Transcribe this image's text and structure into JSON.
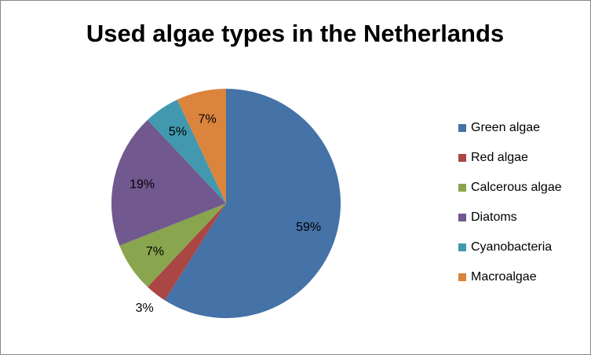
{
  "chart_data": {
    "type": "pie",
    "title": "Used algae types in the Netherlands",
    "categories": [
      "Green algae",
      "Red algae",
      "Calcerous algae",
      "Diatoms",
      "Cyanobacteria",
      "Macroalgae"
    ],
    "values": [
      59,
      3,
      7,
      19,
      5,
      7
    ],
    "value_labels": [
      "59%",
      "3%",
      "7%",
      "19%",
      "5%",
      "7%"
    ],
    "colors": [
      "#4572a7",
      "#aa4643",
      "#89a54e",
      "#71588f",
      "#4198af",
      "#db843d"
    ],
    "legend": "right"
  }
}
